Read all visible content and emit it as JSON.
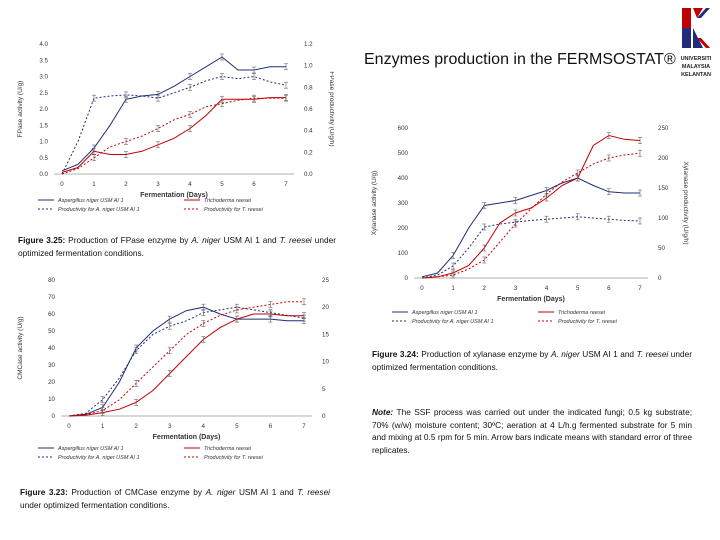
{
  "slide_title": "Enzymes production in the FERMSOSTAT®",
  "logo": {
    "lines": [
      "UNIVERSITI",
      "MALAYSIA",
      "KELANTAN"
    ]
  },
  "colors": {
    "niger": "#1f2d7a",
    "reesei": "#c00000"
  },
  "captions": {
    "fpase": {
      "label": "Figure 3.25:",
      "text": "Production of FPase enzyme by",
      "sp1": "A. niger",
      "mid": "USM AI 1 and",
      "sp2": "T. reesei",
      "tail": "under optimized fermentation conditions."
    },
    "cmcase": {
      "label": "Figure 3.23:",
      "text": "Production of CMCase enzyme by",
      "sp1": "A. niger",
      "mid": "USM AI 1 and",
      "sp2": "T. reesei",
      "tail": "under optimized fermentation conditions."
    },
    "xylanase": {
      "label": "Figure 3.24:",
      "text": "Production of xylanase enzyme by",
      "sp1": "A. niger",
      "mid": "USM AI 1 and",
      "sp2": "T. reesei",
      "tail": "under optimized fermentation conditions."
    },
    "note": {
      "label": "Note:",
      "text": "The SSF process was carried out under the indicated fungi; 0.5 kg substrate; 70% (w/w) moisture content; 30ºC; aeration at 4 L/h.g fermented substrate for 5 min and mixing at 0.5 rpm for 5 min. Arrow bars indicate means with standard error of three replicates."
    }
  },
  "chart_data": [
    {
      "id": "fpase",
      "type": "line",
      "xlabel": "Fermentation (Days)",
      "x": [
        0,
        0.5,
        1,
        1.5,
        2,
        2.5,
        3,
        3.5,
        4,
        4.5,
        5,
        5.5,
        6,
        6.5,
        7
      ],
      "ylim": [
        0,
        4.0
      ],
      "yticks": [
        "0.0",
        "0.5",
        "1.0",
        "1.5",
        "2.0",
        "2.5",
        "3.0",
        "3.5",
        "4.0"
      ],
      "y2lim": [
        0,
        1.2
      ],
      "y2ticks": [
        "0.0",
        "0.2",
        "0.4",
        "0.6",
        "0.8",
        "1.0",
        "1.2"
      ],
      "ylabel": "FPase activity (U/g)",
      "y2label": "FPase productivity (U/g/h)",
      "series": [
        {
          "name": "Aspergillus niger USM AI 1",
          "axis": "left",
          "style": "solid",
          "color": "niger",
          "values": [
            0.1,
            0.3,
            0.8,
            1.5,
            2.3,
            2.4,
            2.45,
            2.7,
            3.0,
            3.3,
            3.6,
            3.2,
            3.2,
            3.3,
            3.3
          ]
        },
        {
          "name": "Trichoderma reesei",
          "axis": "left",
          "style": "solid",
          "color": "reesei",
          "values": [
            0.05,
            0.2,
            0.7,
            0.6,
            0.6,
            0.7,
            0.9,
            1.1,
            1.4,
            1.8,
            2.3,
            2.3,
            2.3,
            2.35,
            2.35
          ]
        },
        {
          "name": "Productivity for A. niger USM AI 1",
          "axis": "right",
          "style": "dotted",
          "color": "niger",
          "values": [
            0,
            0.3,
            0.7,
            0.72,
            0.73,
            0.72,
            0.7,
            0.75,
            0.8,
            0.86,
            0.9,
            0.88,
            0.9,
            0.85,
            0.82
          ]
        },
        {
          "name": "Productivity for T. reesei",
          "axis": "right",
          "style": "dotted",
          "color": "reesei",
          "values": [
            0,
            0.05,
            0.15,
            0.25,
            0.3,
            0.35,
            0.42,
            0.5,
            0.55,
            0.62,
            0.65,
            0.68,
            0.7,
            0.7,
            0.7
          ]
        }
      ]
    },
    {
      "id": "cmcase",
      "type": "line",
      "xlabel": "Fermentation (Days)",
      "x": [
        0,
        0.5,
        1,
        1.5,
        2,
        2.5,
        3,
        3.5,
        4,
        4.5,
        5,
        5.5,
        6,
        6.5,
        7
      ],
      "ylim": [
        0,
        80
      ],
      "yticks": [
        "0",
        "10",
        "20",
        "30",
        "40",
        "50",
        "60",
        "70",
        "80"
      ],
      "y2lim": [
        0,
        25
      ],
      "y2ticks": [
        "0",
        "5",
        "10",
        "15",
        "20",
        "25"
      ],
      "ylabel": "CMCase activity (U/g)",
      "y2label": "CMCase productivity (U/g/h)",
      "series": [
        {
          "name": "Aspergillus niger USM AI 1",
          "axis": "left",
          "style": "solid",
          "color": "niger",
          "values": [
            0,
            1,
            5,
            20,
            40,
            50,
            57,
            62,
            64,
            60,
            57,
            57,
            57,
            56,
            56
          ]
        },
        {
          "name": "Trichoderma reesei",
          "axis": "left",
          "style": "solid",
          "color": "reesei",
          "values": [
            0,
            0.5,
            2,
            4,
            8,
            15,
            25,
            35,
            45,
            52,
            57,
            60,
            60,
            59,
            59
          ]
        },
        {
          "name": "Productivity for A. niger USM AI 1",
          "axis": "right",
          "style": "dotted",
          "color": "niger",
          "values": [
            0,
            0.5,
            3,
            7,
            12,
            15,
            16.5,
            17.5,
            19,
            19.5,
            20,
            19.5,
            19,
            18.5,
            18
          ]
        },
        {
          "name": "Productivity for T. reesei",
          "axis": "right",
          "style": "dotted",
          "color": "reesei",
          "values": [
            0,
            0.3,
            1,
            3,
            6,
            9,
            12,
            15,
            17,
            18.5,
            19.5,
            20,
            20.5,
            21,
            21
          ]
        }
      ]
    },
    {
      "id": "xylanase",
      "type": "line",
      "xlabel": "Fermentation (Days)",
      "x": [
        0,
        0.5,
        1,
        1.5,
        2,
        2.5,
        3,
        3.5,
        4,
        4.5,
        5,
        5.5,
        6,
        6.5,
        7
      ],
      "ylim": [
        0,
        600
      ],
      "yticks": [
        "0",
        "100",
        "200",
        "300",
        "400",
        "500",
        "600"
      ],
      "y2lim": [
        0,
        250
      ],
      "y2ticks": [
        "0",
        "50",
        "100",
        "150",
        "200",
        "250"
      ],
      "ylabel": "Xylanase activity (U/g)",
      "y2label": "Xylanase productivity (U/g/h)",
      "series": [
        {
          "name": "Aspergillus niger USM AI 1",
          "axis": "left",
          "style": "solid",
          "color": "niger",
          "values": [
            5,
            20,
            90,
            200,
            290,
            300,
            310,
            330,
            350,
            380,
            400,
            370,
            345,
            340,
            340
          ]
        },
        {
          "name": "Trichoderma reesei",
          "axis": "left",
          "style": "solid",
          "color": "reesei",
          "values": [
            0,
            5,
            20,
            50,
            120,
            220,
            260,
            280,
            320,
            370,
            400,
            530,
            570,
            555,
            550
          ]
        },
        {
          "name": "Productivity for A. niger USM AI 1",
          "axis": "right",
          "style": "dotted",
          "color": "niger",
          "values": [
            0,
            5,
            20,
            50,
            85,
            90,
            93,
            96,
            98,
            100,
            102,
            100,
            98,
            96,
            95
          ]
        },
        {
          "name": "Productivity for T. reesei",
          "axis": "right",
          "style": "dotted",
          "color": "reesei",
          "values": [
            0,
            2,
            5,
            15,
            30,
            60,
            90,
            115,
            140,
            160,
            175,
            190,
            200,
            205,
            208
          ]
        }
      ]
    }
  ]
}
